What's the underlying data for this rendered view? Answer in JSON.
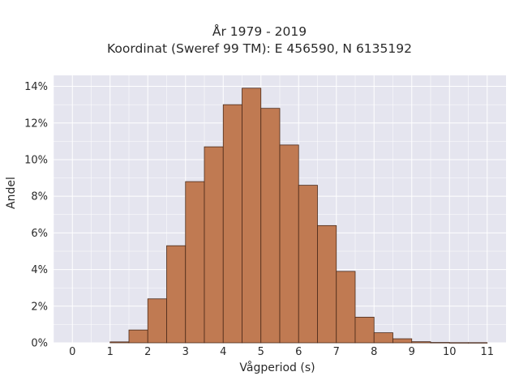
{
  "chart_data": {
    "type": "bar",
    "title": "År 1979 - 2019",
    "subtitle": "Koordinat (Sweref 99 TM): E 456590, N 6135192",
    "xlabel": "Vågperiod (s)",
    "ylabel": "Andel",
    "bin_width": 0.5,
    "bins_start": [
      1.0,
      1.5,
      2.0,
      2.5,
      3.0,
      3.5,
      4.0,
      4.5,
      5.0,
      5.5,
      6.0,
      6.5,
      7.0,
      7.5,
      8.0,
      8.5,
      9.0,
      9.5,
      10.0,
      10.5
    ],
    "values": [
      0.05,
      0.7,
      2.4,
      5.3,
      8.8,
      10.7,
      13.0,
      13.9,
      12.8,
      10.8,
      8.6,
      6.4,
      3.9,
      1.4,
      0.55,
      0.22,
      0.06,
      0.02,
      0.01,
      0.01
    ],
    "xticks": [
      0,
      1,
      2,
      3,
      4,
      5,
      6,
      7,
      8,
      9,
      10,
      11
    ],
    "yticks": [
      0,
      2,
      4,
      6,
      8,
      10,
      12,
      14
    ],
    "ytick_suffix": "%",
    "xlim": [
      -0.5,
      11.5
    ],
    "ylim": [
      0,
      14.6
    ],
    "grid": true,
    "colors": {
      "bar_fill": "#c07a52",
      "bar_edge": "#4a2a1a",
      "plot_bg": "#e5e5ef",
      "grid": "#ffffff"
    }
  }
}
